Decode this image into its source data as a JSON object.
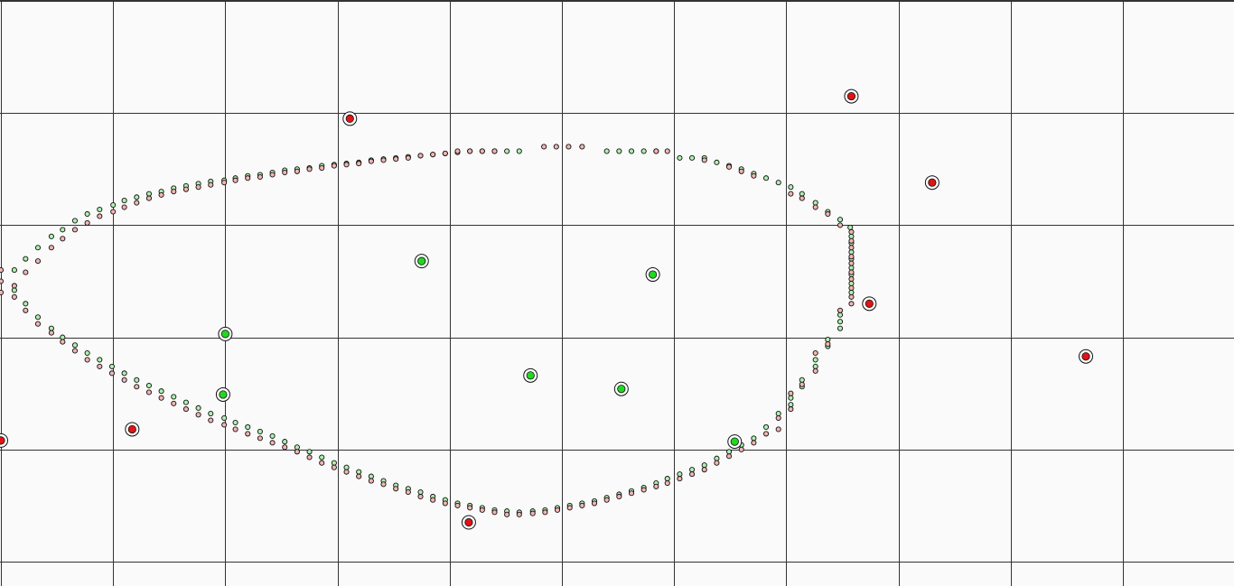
{
  "chart_data": {
    "type": "scatter",
    "title": "",
    "xlabel": "",
    "ylabel": "",
    "grid": true,
    "xlim": [
      0,
      11
    ],
    "ylim": [
      0,
      5.22
    ],
    "grid_step": 1,
    "colors": {
      "background": "#fafafa",
      "grid": "#333333",
      "green": "#22d822",
      "red": "#e01414",
      "green_small": "#aef0ae",
      "red_small": "#f4b4b4",
      "stroke": "#111111"
    },
    "series": [
      {
        "role": "large-green",
        "points": [
          [
            5.53,
            1.54
          ],
          [
            3.75,
            2.68
          ],
          [
            5.81,
            2.56
          ],
          [
            2.0,
            2.03
          ],
          [
            1.98,
            1.49
          ],
          [
            4.72,
            1.66
          ],
          [
            6.54,
            1.07
          ]
        ]
      },
      {
        "role": "large-red",
        "points": [
          [
            3.11,
            3.95
          ],
          [
            7.58,
            4.15
          ],
          [
            8.3,
            3.38
          ],
          [
            7.74,
            2.3
          ],
          [
            9.67,
            1.83
          ],
          [
            1.17,
            1.18
          ],
          [
            0.0,
            1.08
          ],
          [
            4.17,
            0.35
          ]
        ]
      },
      {
        "role": "boundary-green",
        "points": [
          [
            0.12,
            2.6
          ],
          [
            0.22,
            2.7
          ],
          [
            0.33,
            2.8
          ],
          [
            0.45,
            2.9
          ],
          [
            0.55,
            2.96
          ],
          [
            0.66,
            3.04
          ],
          [
            0.77,
            3.1
          ],
          [
            0.88,
            3.14
          ],
          [
            1.0,
            3.18
          ],
          [
            1.1,
            3.22
          ],
          [
            1.21,
            3.25
          ],
          [
            1.32,
            3.28
          ],
          [
            1.43,
            3.3
          ],
          [
            1.54,
            3.33
          ],
          [
            1.65,
            3.35
          ],
          [
            1.76,
            3.37
          ],
          [
            1.87,
            3.39
          ],
          [
            1.99,
            3.4
          ],
          [
            2.09,
            3.42
          ],
          [
            2.2,
            3.44
          ],
          [
            2.31,
            3.45
          ],
          [
            2.42,
            3.47
          ],
          [
            2.53,
            3.49
          ],
          [
            2.64,
            3.5
          ],
          [
            2.75,
            3.51
          ],
          [
            2.86,
            3.53
          ],
          [
            2.97,
            3.54
          ],
          [
            3.08,
            3.55
          ],
          [
            3.19,
            3.56
          ],
          [
            3.3,
            3.58
          ],
          [
            3.41,
            3.59
          ],
          [
            3.52,
            3.6
          ],
          [
            3.63,
            3.61
          ],
          [
            3.74,
            3.62
          ],
          [
            3.85,
            3.63
          ],
          [
            3.96,
            3.64
          ],
          [
            4.07,
            3.65
          ],
          [
            4.18,
            3.66
          ],
          [
            4.29,
            3.66
          ],
          [
            4.4,
            3.66
          ],
          [
            4.51,
            3.66
          ],
          [
            4.62,
            3.66
          ],
          [
            5.4,
            3.66
          ],
          [
            5.51,
            3.66
          ],
          [
            5.62,
            3.66
          ],
          [
            5.73,
            3.66
          ],
          [
            5.84,
            3.66
          ],
          [
            6.05,
            3.6
          ],
          [
            6.16,
            3.6
          ],
          [
            6.27,
            3.6
          ],
          [
            6.38,
            3.56
          ],
          [
            6.49,
            3.53
          ],
          [
            6.6,
            3.5
          ],
          [
            6.71,
            3.46
          ],
          [
            6.82,
            3.42
          ],
          [
            6.93,
            3.38
          ],
          [
            7.04,
            3.34
          ],
          [
            7.14,
            3.28
          ],
          [
            7.26,
            3.2
          ],
          [
            7.37,
            3.12
          ],
          [
            7.48,
            3.05
          ],
          [
            7.57,
            2.98
          ],
          [
            7.58,
            2.9
          ],
          [
            7.58,
            2.84
          ],
          [
            7.58,
            2.76
          ],
          [
            7.58,
            2.7
          ],
          [
            7.58,
            2.62
          ],
          [
            7.58,
            2.56
          ],
          [
            7.58,
            2.48
          ],
          [
            7.58,
            2.4
          ],
          [
            7.48,
            2.2
          ],
          [
            7.48,
            2.14
          ],
          [
            7.48,
            2.08
          ],
          [
            7.37,
            1.98
          ],
          [
            7.37,
            1.92
          ],
          [
            7.26,
            1.8
          ],
          [
            7.26,
            1.74
          ],
          [
            7.14,
            1.62
          ],
          [
            7.14,
            1.56
          ],
          [
            7.04,
            1.46
          ],
          [
            7.04,
            1.4
          ],
          [
            6.93,
            1.32
          ],
          [
            6.82,
            1.2
          ],
          [
            6.71,
            1.1
          ],
          [
            6.6,
            1.04
          ],
          [
            6.49,
            0.98
          ],
          [
            6.38,
            0.92
          ],
          [
            6.27,
            0.86
          ],
          [
            6.16,
            0.82
          ],
          [
            6.05,
            0.78
          ],
          [
            5.94,
            0.74
          ],
          [
            5.84,
            0.7
          ],
          [
            5.73,
            0.66
          ],
          [
            5.62,
            0.63
          ],
          [
            5.51,
            0.6
          ],
          [
            5.4,
            0.57
          ],
          [
            5.29,
            0.54
          ],
          [
            5.18,
            0.52
          ],
          [
            5.07,
            0.5
          ],
          [
            4.96,
            0.48
          ],
          [
            4.85,
            0.46
          ],
          [
            4.74,
            0.45
          ],
          [
            4.62,
            0.44
          ],
          [
            4.51,
            0.45
          ],
          [
            4.4,
            0.46
          ],
          [
            4.29,
            0.48
          ],
          [
            4.18,
            0.5
          ],
          [
            4.07,
            0.52
          ],
          [
            3.96,
            0.55
          ],
          [
            3.85,
            0.58
          ],
          [
            3.74,
            0.62
          ],
          [
            3.63,
            0.65
          ],
          [
            3.52,
            0.68
          ],
          [
            3.41,
            0.72
          ],
          [
            3.3,
            0.76
          ],
          [
            3.19,
            0.8
          ],
          [
            3.08,
            0.84
          ],
          [
            2.97,
            0.88
          ],
          [
            2.86,
            0.93
          ],
          [
            2.75,
            0.98
          ],
          [
            2.64,
            1.02
          ],
          [
            2.53,
            1.07
          ],
          [
            2.42,
            1.12
          ],
          [
            2.31,
            1.16
          ],
          [
            2.2,
            1.2
          ],
          [
            2.09,
            1.24
          ],
          [
            1.99,
            1.28
          ],
          [
            1.87,
            1.32
          ],
          [
            1.76,
            1.37
          ],
          [
            1.65,
            1.42
          ],
          [
            1.54,
            1.47
          ],
          [
            1.43,
            1.52
          ],
          [
            1.32,
            1.57
          ],
          [
            1.21,
            1.62
          ],
          [
            1.1,
            1.68
          ],
          [
            0.99,
            1.74
          ],
          [
            0.88,
            1.8
          ],
          [
            0.77,
            1.86
          ],
          [
            0.66,
            1.93
          ],
          [
            0.55,
            2.0
          ],
          [
            0.45,
            2.08
          ],
          [
            0.33,
            2.18
          ],
          [
            0.22,
            2.3
          ],
          [
            0.12,
            2.42
          ]
        ]
      },
      {
        "role": "boundary-red",
        "points": [
          [
            0.12,
            2.46
          ],
          [
            0.22,
            2.58
          ],
          [
            0.33,
            2.68
          ],
          [
            0.45,
            2.8
          ],
          [
            0.55,
            2.88
          ],
          [
            0.66,
            2.96
          ],
          [
            0.77,
            3.02
          ],
          [
            0.88,
            3.08
          ],
          [
            1.0,
            3.12
          ],
          [
            1.1,
            3.16
          ],
          [
            1.21,
            3.2
          ],
          [
            1.32,
            3.24
          ],
          [
            1.43,
            3.27
          ],
          [
            1.54,
            3.3
          ],
          [
            1.65,
            3.32
          ],
          [
            1.76,
            3.34
          ],
          [
            1.87,
            3.36
          ],
          [
            1.99,
            3.38
          ],
          [
            2.09,
            3.4
          ],
          [
            2.2,
            3.42
          ],
          [
            2.31,
            3.43
          ],
          [
            2.42,
            3.45
          ],
          [
            2.53,
            3.47
          ],
          [
            2.64,
            3.48
          ],
          [
            2.75,
            3.5
          ],
          [
            2.86,
            3.51
          ],
          [
            2.97,
            3.53
          ],
          [
            3.08,
            3.54
          ],
          [
            3.19,
            3.55
          ],
          [
            3.3,
            3.57
          ],
          [
            3.41,
            3.58
          ],
          [
            3.52,
            3.59
          ],
          [
            3.63,
            3.6
          ],
          [
            3.74,
            3.62
          ],
          [
            3.85,
            3.63
          ],
          [
            3.96,
            3.64
          ],
          [
            4.07,
            3.66
          ],
          [
            4.18,
            3.66
          ],
          [
            4.29,
            3.66
          ],
          [
            4.4,
            3.66
          ],
          [
            4.84,
            3.7
          ],
          [
            4.95,
            3.7
          ],
          [
            5.06,
            3.7
          ],
          [
            5.18,
            3.7
          ],
          [
            5.84,
            3.66
          ],
          [
            5.94,
            3.66
          ],
          [
            6.27,
            3.58
          ],
          [
            6.49,
            3.52
          ],
          [
            6.6,
            3.48
          ],
          [
            6.71,
            3.44
          ],
          [
            7.04,
            3.28
          ],
          [
            7.14,
            3.24
          ],
          [
            7.26,
            3.16
          ],
          [
            7.37,
            3.1
          ],
          [
            7.48,
            3.0
          ],
          [
            7.58,
            2.94
          ],
          [
            7.58,
            2.86
          ],
          [
            7.58,
            2.8
          ],
          [
            7.58,
            2.72
          ],
          [
            7.58,
            2.66
          ],
          [
            7.58,
            2.58
          ],
          [
            7.58,
            2.52
          ],
          [
            7.58,
            2.44
          ],
          [
            7.58,
            2.36
          ],
          [
            7.58,
            2.3
          ],
          [
            7.48,
            2.24
          ],
          [
            7.37,
            1.94
          ],
          [
            7.26,
            1.86
          ],
          [
            7.26,
            1.7
          ],
          [
            7.14,
            1.58
          ],
          [
            7.04,
            1.5
          ],
          [
            7.04,
            1.36
          ],
          [
            6.93,
            1.28
          ],
          [
            6.93,
            1.18
          ],
          [
            6.82,
            1.14
          ],
          [
            6.71,
            1.06
          ],
          [
            6.6,
            1.0
          ],
          [
            6.49,
            0.94
          ],
          [
            6.38,
            0.88
          ],
          [
            6.27,
            0.82
          ],
          [
            6.16,
            0.78
          ],
          [
            6.05,
            0.74
          ],
          [
            5.94,
            0.7
          ],
          [
            5.84,
            0.67
          ],
          [
            5.73,
            0.64
          ],
          [
            5.62,
            0.61
          ],
          [
            5.51,
            0.58
          ],
          [
            5.4,
            0.55
          ],
          [
            5.29,
            0.52
          ],
          [
            5.18,
            0.5
          ],
          [
            5.07,
            0.48
          ],
          [
            4.96,
            0.46
          ],
          [
            4.85,
            0.44
          ],
          [
            4.74,
            0.43
          ],
          [
            4.62,
            0.42
          ],
          [
            4.51,
            0.42
          ],
          [
            4.4,
            0.44
          ],
          [
            4.29,
            0.46
          ],
          [
            4.18,
            0.48
          ],
          [
            4.07,
            0.5
          ],
          [
            3.96,
            0.52
          ],
          [
            3.85,
            0.55
          ],
          [
            3.74,
            0.58
          ],
          [
            3.63,
            0.62
          ],
          [
            3.52,
            0.65
          ],
          [
            3.41,
            0.69
          ],
          [
            3.3,
            0.72
          ],
          [
            3.19,
            0.76
          ],
          [
            3.08,
            0.8
          ],
          [
            2.97,
            0.84
          ],
          [
            2.86,
            0.88
          ],
          [
            2.75,
            0.93
          ],
          [
            2.64,
            0.98
          ],
          [
            2.53,
            1.02
          ],
          [
            2.42,
            1.06
          ],
          [
            2.31,
            1.1
          ],
          [
            2.2,
            1.14
          ],
          [
            2.09,
            1.18
          ],
          [
            1.99,
            1.22
          ],
          [
            1.87,
            1.26
          ],
          [
            1.76,
            1.31
          ],
          [
            1.65,
            1.36
          ],
          [
            1.54,
            1.41
          ],
          [
            1.43,
            1.46
          ],
          [
            1.32,
            1.51
          ],
          [
            1.21,
            1.56
          ],
          [
            1.1,
            1.62
          ],
          [
            0.99,
            1.68
          ],
          [
            0.88,
            1.74
          ],
          [
            0.77,
            1.8
          ],
          [
            0.66,
            1.88
          ],
          [
            0.55,
            1.96
          ],
          [
            0.45,
            2.04
          ],
          [
            0.33,
            2.12
          ],
          [
            0.22,
            2.24
          ],
          [
            0.12,
            2.36
          ],
          [
            0.0,
            2.5
          ],
          [
            0.0,
            2.4
          ],
          [
            0.0,
            2.6
          ]
        ]
      }
    ]
  }
}
